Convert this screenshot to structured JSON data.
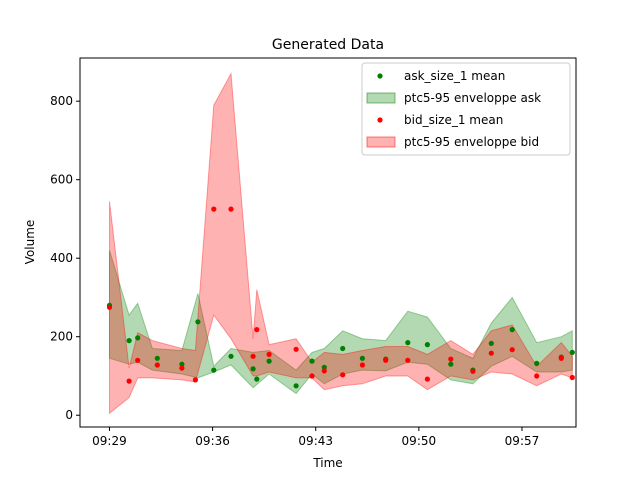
{
  "chart_data": {
    "type": "line",
    "title": "Generated Data",
    "xlabel": "Time",
    "ylabel": "Volume",
    "xlim": [
      "09:27:00",
      "10:00:40"
    ],
    "ylim": [
      -30,
      910
    ],
    "x_ticks": [
      "09:29",
      "09:36",
      "09:43",
      "09:50",
      "09:57"
    ],
    "y_ticks": [
      0,
      200,
      400,
      600,
      800
    ],
    "grid": false,
    "legend_position": "top-right",
    "series": [
      {
        "name": "ask_size_1 mean",
        "kind": "points",
        "color": "#008000",
        "points": [
          [
            "09:29:00",
            280
          ],
          [
            "09:30:20",
            190
          ],
          [
            "09:30:55",
            197
          ],
          [
            "09:32:15",
            145
          ],
          [
            "09:33:55",
            130
          ],
          [
            "09:35:00",
            238
          ],
          [
            "09:36:05",
            115
          ],
          [
            "09:37:15",
            150
          ],
          [
            "09:38:45",
            118
          ],
          [
            "09:39:00",
            92
          ],
          [
            "09:39:50",
            138
          ],
          [
            "09:41:40",
            75
          ],
          [
            "09:42:45",
            138
          ],
          [
            "09:43:35",
            122
          ],
          [
            "09:44:50",
            170
          ],
          [
            "09:46:10",
            145
          ],
          [
            "09:47:45",
            143
          ],
          [
            "09:49:15",
            185
          ],
          [
            "09:50:35",
            180
          ],
          [
            "09:52:10",
            130
          ],
          [
            "09:53:40",
            115
          ],
          [
            "09:54:55",
            183
          ],
          [
            "09:56:20",
            218
          ],
          [
            "09:58:00",
            132
          ],
          [
            "09:59:40",
            148
          ],
          [
            "10:00:25",
            160
          ]
        ]
      },
      {
        "name": "ptc5-95 enveloppe ask",
        "kind": "band",
        "color": "#008000",
        "x": [
          "09:29:00",
          "09:30:20",
          "09:30:55",
          "09:31:55",
          "09:33:55",
          "09:35:00",
          "09:36:05",
          "09:37:15",
          "09:38:45",
          "09:39:50",
          "09:41:40",
          "09:42:45",
          "09:43:35",
          "09:44:50",
          "09:46:10",
          "09:47:45",
          "09:49:15",
          "09:50:35",
          "09:52:10",
          "09:53:40",
          "09:54:55",
          "09:56:20",
          "09:58:00",
          "09:59:40",
          "10:00:25"
        ],
        "lower": [
          145,
          130,
          135,
          115,
          105,
          95,
          110,
          128,
          70,
          105,
          55,
          105,
          80,
          105,
          115,
          113,
          135,
          130,
          90,
          80,
          125,
          150,
          110,
          110,
          115
        ],
        "upper": [
          420,
          255,
          285,
          170,
          165,
          310,
          125,
          170,
          160,
          165,
          115,
          160,
          170,
          215,
          195,
          190,
          265,
          250,
          170,
          145,
          235,
          300,
          185,
          200,
          215
        ]
      },
      {
        "name": "bid_size_1 mean",
        "kind": "points",
        "color": "#ff0000",
        "points": [
          [
            "09:29:00",
            275
          ],
          [
            "09:30:20",
            87
          ],
          [
            "09:30:55",
            140
          ],
          [
            "09:32:15",
            128
          ],
          [
            "09:33:55",
            120
          ],
          [
            "09:34:50",
            90
          ],
          [
            "09:36:05",
            525
          ],
          [
            "09:37:15",
            525
          ],
          [
            "09:38:45",
            150
          ],
          [
            "09:39:00",
            218
          ],
          [
            "09:39:50",
            155
          ],
          [
            "09:41:40",
            168
          ],
          [
            "09:42:45",
            100
          ],
          [
            "09:43:35",
            113
          ],
          [
            "09:44:50",
            103
          ],
          [
            "09:46:10",
            128
          ],
          [
            "09:47:45",
            140
          ],
          [
            "09:49:15",
            140
          ],
          [
            "09:50:35",
            92
          ],
          [
            "09:52:10",
            143
          ],
          [
            "09:53:40",
            112
          ],
          [
            "09:54:55",
            158
          ],
          [
            "09:56:20",
            167
          ],
          [
            "09:58:00",
            100
          ],
          [
            "09:59:40",
            145
          ],
          [
            "10:00:25",
            96
          ]
        ]
      },
      {
        "name": "ptc5-95 enveloppe bid",
        "kind": "band",
        "color": "#ff0000",
        "x": [
          "09:29:00",
          "09:30:20",
          "09:30:55",
          "09:31:55",
          "09:33:55",
          "09:34:50",
          "09:36:05",
          "09:37:15",
          "09:38:45",
          "09:39:00",
          "09:39:50",
          "09:41:40",
          "09:42:45",
          "09:43:35",
          "09:44:50",
          "09:46:10",
          "09:47:45",
          "09:49:15",
          "09:50:35",
          "09:52:10",
          "09:53:40",
          "09:54:55",
          "09:56:20",
          "09:58:00",
          "09:59:40",
          "10:00:25"
        ],
        "lower": [
          5,
          45,
          95,
          95,
          90,
          85,
          255,
          195,
          100,
          100,
          110,
          95,
          95,
          65,
          75,
          80,
          100,
          100,
          65,
          100,
          90,
          110,
          105,
          75,
          105,
          95
        ],
        "upper": [
          545,
          120,
          210,
          190,
          170,
          165,
          790,
          870,
          195,
          320,
          180,
          195,
          135,
          160,
          155,
          165,
          175,
          175,
          155,
          190,
          155,
          215,
          230,
          125,
          185,
          150
        ]
      }
    ]
  }
}
